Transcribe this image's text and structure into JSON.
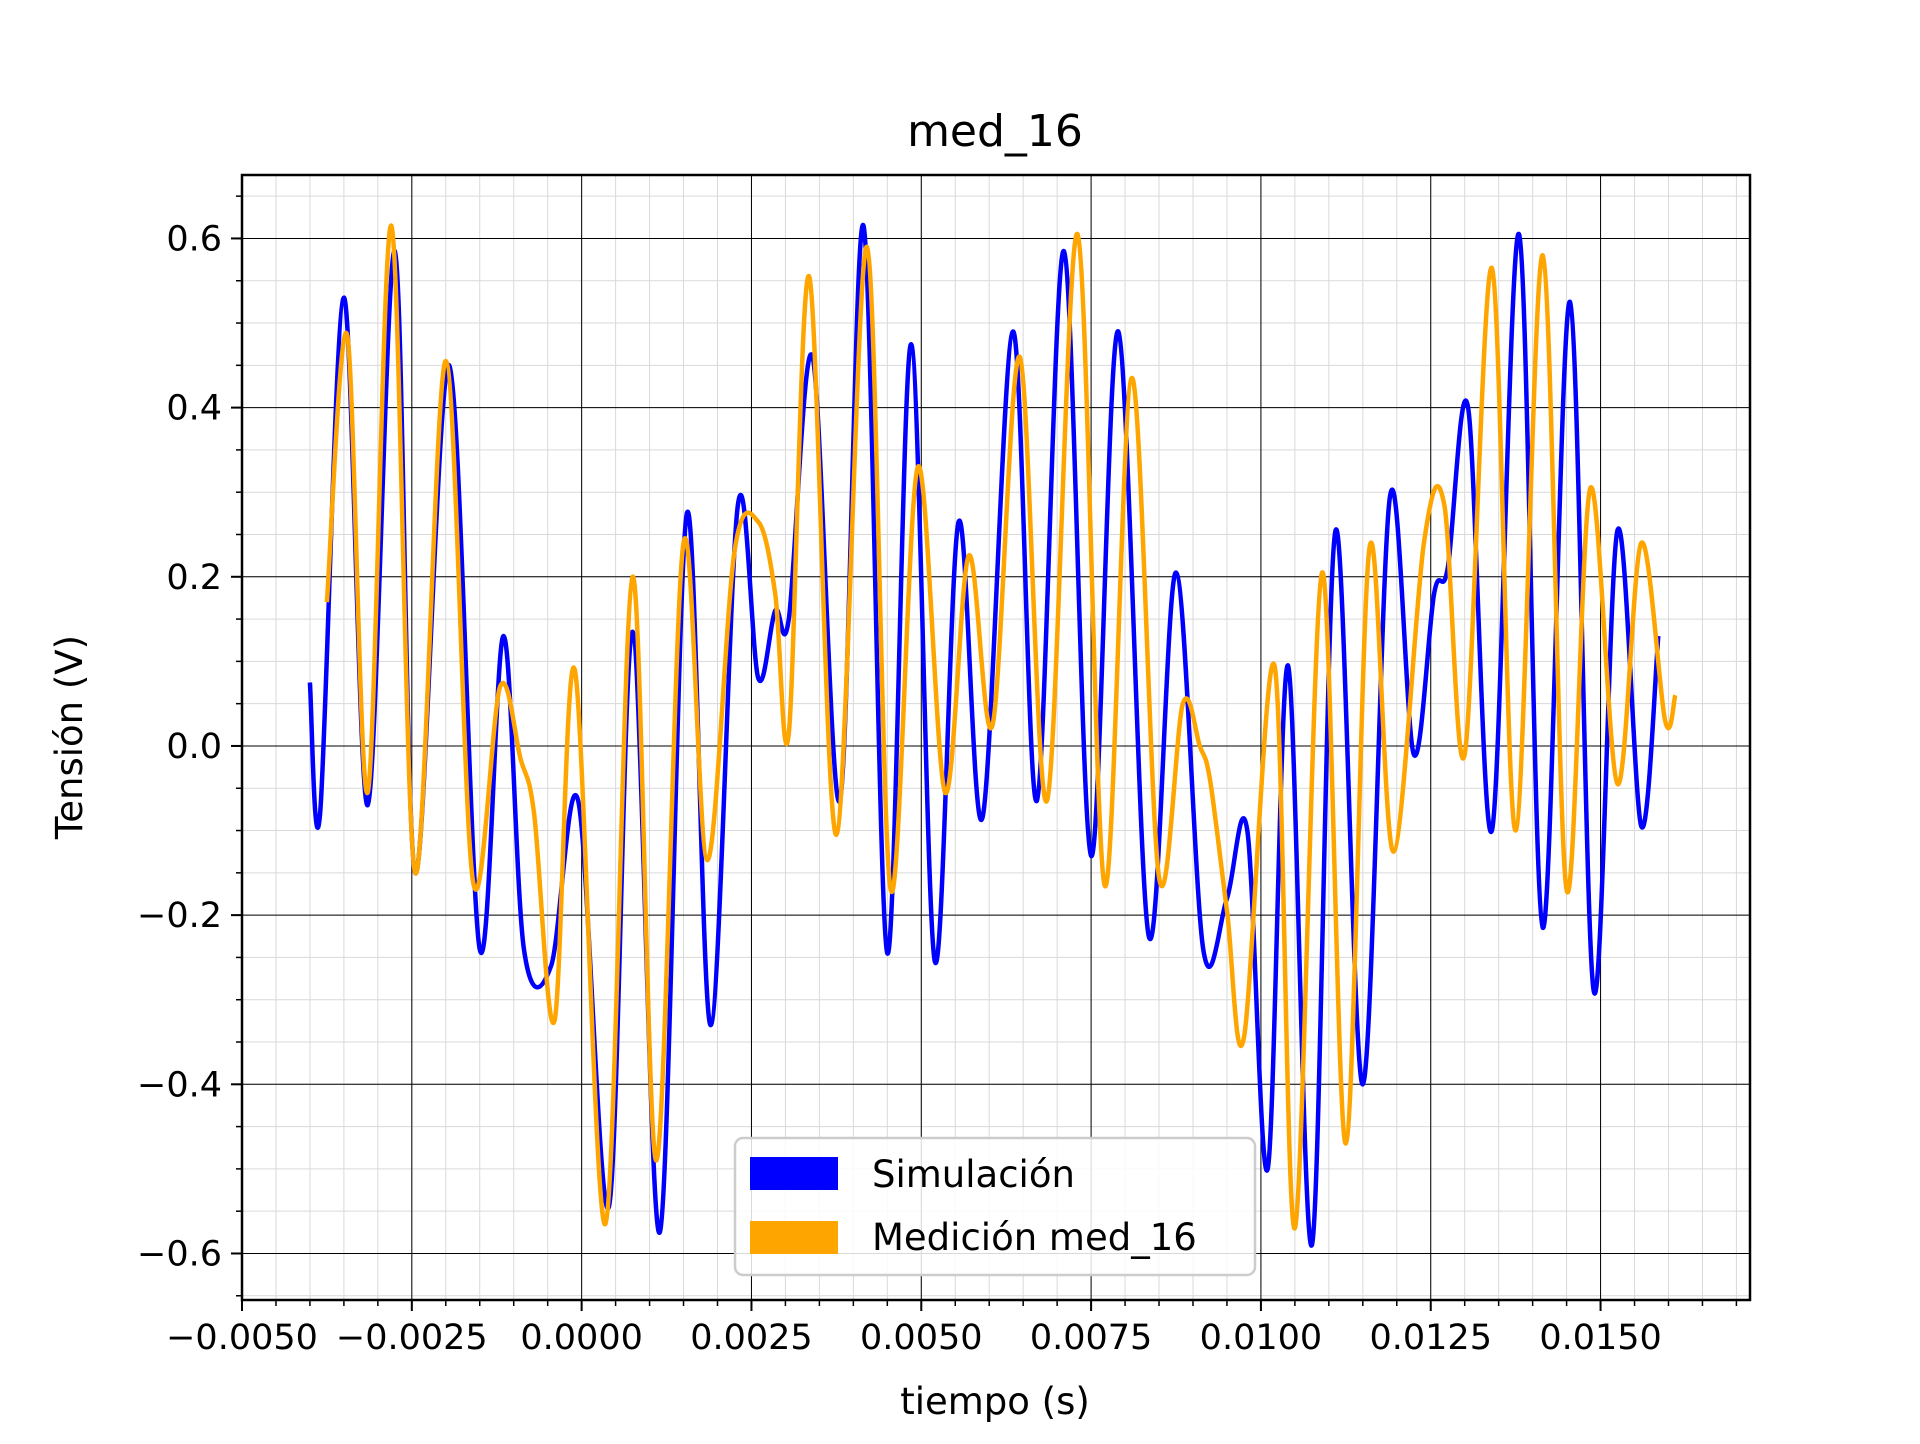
{
  "chart_data": {
    "type": "line",
    "title": "med_16",
    "xlabel": "tiempo (s)",
    "ylabel": "Tensión (V)",
    "xlim": [
      -0.005,
      0.0172
    ],
    "ylim": [
      -0.655,
      0.675
    ],
    "xticks": [
      -0.005,
      -0.0025,
      0.0,
      0.0025,
      0.005,
      0.0075,
      0.01,
      0.0125,
      0.015
    ],
    "xtick_labels": [
      "−0.0050",
      "−0.0025",
      "0.0000",
      "0.0025",
      "0.0050",
      "0.0075",
      "0.0100",
      "0.0125",
      "0.0150"
    ],
    "yticks": [
      -0.6,
      -0.4,
      -0.2,
      0.0,
      0.2,
      0.4,
      0.6
    ],
    "ytick_labels": [
      "−0.6",
      "−0.4",
      "−0.2",
      "0.0",
      "0.2",
      "0.4",
      "0.6"
    ],
    "grid": true,
    "minor_grid": true,
    "legend_position": "lower-center",
    "series": [
      {
        "name": "Simulación",
        "color": "#0000ff",
        "points": [
          [
            -0.004,
            0.075
          ],
          [
            -0.00385,
            -0.08
          ],
          [
            -0.0035,
            0.53
          ],
          [
            -0.00315,
            -0.07
          ],
          [
            -0.00275,
            0.585
          ],
          [
            -0.00245,
            -0.15
          ],
          [
            -0.00195,
            0.45
          ],
          [
            -0.0015,
            -0.24
          ],
          [
            -0.00115,
            0.13
          ],
          [
            -0.00085,
            -0.24
          ],
          [
            -0.00045,
            -0.26
          ],
          [
            -5e-05,
            -0.065
          ],
          [
            0.0004,
            -0.545
          ],
          [
            0.00075,
            0.135
          ],
          [
            0.00115,
            -0.575
          ],
          [
            0.00155,
            0.275
          ],
          [
            0.0019,
            -0.33
          ],
          [
            0.0023,
            0.285
          ],
          [
            0.0026,
            0.08
          ],
          [
            0.00285,
            0.16
          ],
          [
            0.00305,
            0.15
          ],
          [
            0.0034,
            0.46
          ],
          [
            0.0038,
            -0.065
          ],
          [
            0.00415,
            0.615
          ],
          [
            0.0045,
            -0.245
          ],
          [
            0.00485,
            0.475
          ],
          [
            0.0052,
            -0.255
          ],
          [
            0.00555,
            0.265
          ],
          [
            0.0059,
            -0.085
          ],
          [
            0.00635,
            0.49
          ],
          [
            0.0067,
            -0.065
          ],
          [
            0.0071,
            0.585
          ],
          [
            0.0075,
            -0.13
          ],
          [
            0.0079,
            0.49
          ],
          [
            0.00835,
            -0.225
          ],
          [
            0.00875,
            0.205
          ],
          [
            0.00915,
            -0.24
          ],
          [
            0.0095,
            -0.18
          ],
          [
            0.0098,
            -0.1
          ],
          [
            0.0101,
            -0.5
          ],
          [
            0.0104,
            0.095
          ],
          [
            0.01075,
            -0.59
          ],
          [
            0.0111,
            0.255
          ],
          [
            0.0115,
            -0.4
          ],
          [
            0.0119,
            0.295
          ],
          [
            0.01225,
            -0.01
          ],
          [
            0.01255,
            0.18
          ],
          [
            0.01275,
            0.21
          ],
          [
            0.01305,
            0.4
          ],
          [
            0.0134,
            -0.1
          ],
          [
            0.0138,
            0.605
          ],
          [
            0.01415,
            -0.215
          ],
          [
            0.01455,
            0.525
          ],
          [
            0.0149,
            -0.29
          ],
          [
            0.01525,
            0.255
          ],
          [
            0.0156,
            -0.095
          ],
          [
            0.01585,
            0.13
          ]
        ]
      },
      {
        "name": "Medición med_16",
        "color": "#ffa500",
        "points": [
          [
            -0.00375,
            0.17
          ],
          [
            -0.00345,
            0.485
          ],
          [
            -0.00315,
            -0.055
          ],
          [
            -0.0028,
            0.615
          ],
          [
            -0.00245,
            -0.15
          ],
          [
            -0.002,
            0.455
          ],
          [
            -0.0016,
            -0.16
          ],
          [
            -0.0012,
            0.07
          ],
          [
            -0.0009,
            -0.015
          ],
          [
            -0.0007,
            -0.08
          ],
          [
            -0.0004,
            -0.325
          ],
          [
            -0.0001,
            0.09
          ],
          [
            0.00035,
            -0.565
          ],
          [
            0.00075,
            0.2
          ],
          [
            0.0011,
            -0.49
          ],
          [
            0.0015,
            0.24
          ],
          [
            0.00185,
            -0.135
          ],
          [
            0.00225,
            0.23
          ],
          [
            0.0026,
            0.265
          ],
          [
            0.00285,
            0.18
          ],
          [
            0.00305,
            0.015
          ],
          [
            0.00335,
            0.555
          ],
          [
            0.00375,
            -0.105
          ],
          [
            0.0042,
            0.59
          ],
          [
            0.00455,
            -0.17
          ],
          [
            0.00495,
            0.33
          ],
          [
            0.00535,
            -0.055
          ],
          [
            0.0057,
            0.225
          ],
          [
            0.00605,
            0.025
          ],
          [
            0.00645,
            0.46
          ],
          [
            0.00685,
            -0.065
          ],
          [
            0.0073,
            0.605
          ],
          [
            0.0077,
            -0.165
          ],
          [
            0.0081,
            0.435
          ],
          [
            0.0085,
            -0.155
          ],
          [
            0.00885,
            0.05
          ],
          [
            0.0091,
            0.0
          ],
          [
            0.00925,
            -0.04
          ],
          [
            0.0095,
            -0.195
          ],
          [
            0.00975,
            -0.345
          ],
          [
            0.0102,
            0.095
          ],
          [
            0.0105,
            -0.57
          ],
          [
            0.0109,
            0.205
          ],
          [
            0.01125,
            -0.47
          ],
          [
            0.0116,
            0.235
          ],
          [
            0.01195,
            -0.125
          ],
          [
            0.0124,
            0.24
          ],
          [
            0.0127,
            0.285
          ],
          [
            0.013,
            -0.01
          ],
          [
            0.0134,
            0.565
          ],
          [
            0.01375,
            -0.1
          ],
          [
            0.01415,
            0.58
          ],
          [
            0.0145,
            -0.17
          ],
          [
            0.01485,
            0.305
          ],
          [
            0.01525,
            -0.045
          ],
          [
            0.0156,
            0.24
          ],
          [
            0.01595,
            0.03
          ],
          [
            0.0161,
            0.06
          ]
        ]
      }
    ]
  }
}
